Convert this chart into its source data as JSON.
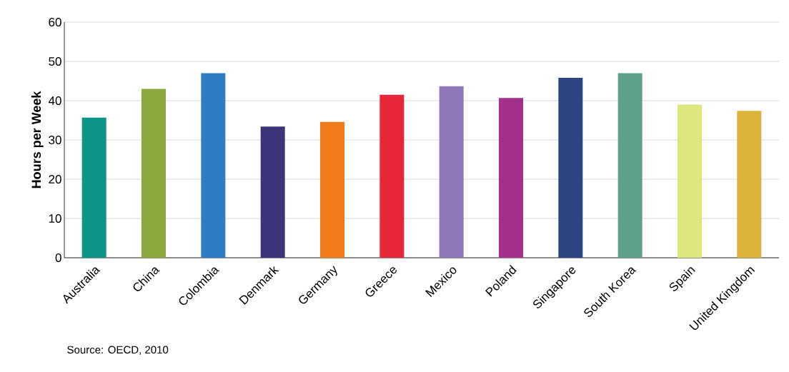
{
  "chart_data": {
    "type": "bar",
    "ylabel": "Hours per Week",
    "annotations": [
      "Source: OECD, 2010"
    ],
    "categories": [
      "Australia",
      "China",
      "Colombia",
      "Denmark",
      "Germany",
      "Greece",
      "Mexico",
      "Poland",
      "Singapore",
      "South Korea",
      "Spain",
      "United Kingdom"
    ],
    "values": [
      35.7,
      43,
      47,
      33.4,
      34.6,
      41.5,
      43.7,
      40.7,
      45.8,
      47,
      39,
      37.4
    ],
    "colors": [
      "#0f9488",
      "#8aa83e",
      "#2f7cc4",
      "#3b3479",
      "#f47a1e",
      "#e8263a",
      "#8f78b8",
      "#a3308a",
      "#2c4482",
      "#5fa088",
      "#dce57e",
      "#dcb33a"
    ],
    "ylim": [
      0,
      60
    ],
    "yticks": [
      0,
      10,
      20,
      30,
      40,
      50,
      60
    ],
    "grid": "y"
  }
}
